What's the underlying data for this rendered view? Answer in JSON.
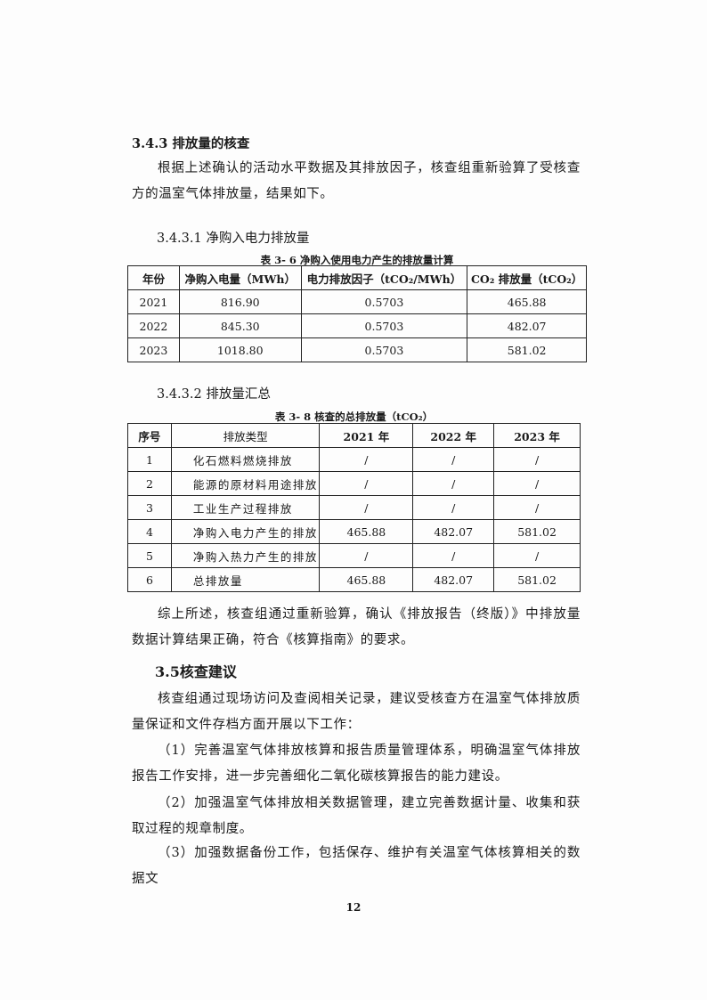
{
  "section_343": {
    "heading": "3.4.3 排放量的核查",
    "paragraph": "根据上述确认的活动水平数据及其排放因子，核查组重新验算了受核查方的温室气体排放量，结果如下。"
  },
  "section_3431": {
    "heading": "3.4.3.1 净购入电力排放量"
  },
  "table_36": {
    "caption": "表 3- 6 净购入使用电力产生的排放量计算",
    "headers": [
      "年份",
      "净购入电量（MWh）",
      "电力排放因子（tCO₂/MWh）",
      "CO₂ 排放量（tCO₂）"
    ],
    "rows": [
      [
        "2021",
        "816.90",
        "0.5703",
        "465.88"
      ],
      [
        "2022",
        "845.30",
        "0.5703",
        "482.07"
      ],
      [
        "2023",
        "1018.80",
        "0.5703",
        "581.02"
      ]
    ]
  },
  "section_3432": {
    "heading": "3.4.3.2 排放量汇总"
  },
  "table_38": {
    "caption": "表 3- 8 核查的总排放量（tCO₂）",
    "headers": [
      "序号",
      "排放类型",
      "2021 年",
      "2022 年",
      "2023 年"
    ],
    "rows": [
      [
        "1",
        "化石燃料燃烧排放",
        "/",
        "/",
        "/"
      ],
      [
        "2",
        "能源的原材料用途排放",
        "/",
        "/",
        "/"
      ],
      [
        "3",
        "工业生产过程排放",
        "/",
        "/",
        "/"
      ],
      [
        "4",
        "净购入电力产生的排放",
        "465.88",
        "482.07",
        "581.02"
      ],
      [
        "5",
        "净购入热力产生的排放",
        "/",
        "/",
        "/"
      ],
      [
        "6",
        "总排放量",
        "465.88",
        "482.07",
        "581.02"
      ]
    ]
  },
  "summary_paragraph": "综上所述，核查组通过重新验算，确认《排放报告（终版）》中排放量数据计算结果正确，符合《核算指南》的要求。",
  "section_35": {
    "heading": "3.5核查建议",
    "intro": "核查组通过现场访问及查阅相关记录，建议受核查方在温室气体排放质量保证和文件存档方面开展以下工作：",
    "items": [
      "（1）完善温室气体排放核算和报告质量管理体系，明确温室气体排放报告工作安排，进一步完善细化二氧化碳核算报告的能力建设。",
      "（2）加强温室气体排放相关数据管理，建立完善数据计量、收集和获取过程的规章制度。",
      "（3）加强数据备份工作，包括保存、维护有关温室气体核算相关的数据文"
    ]
  },
  "page_number": "12"
}
